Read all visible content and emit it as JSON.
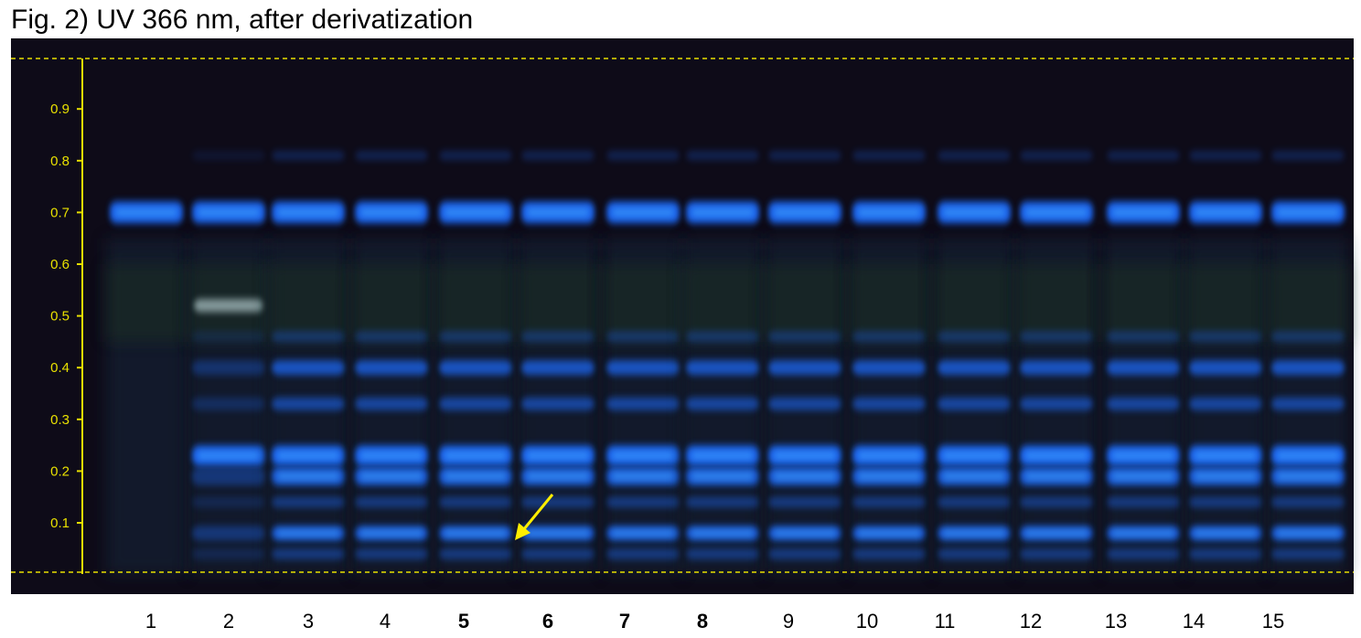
{
  "title": "Fig. 2) UV 366 nm, after derivatization",
  "axis": {
    "ticks": [
      0.9,
      0.8,
      0.7,
      0.6,
      0.5,
      0.4,
      0.3,
      0.2,
      0.1
    ]
  },
  "lanes": [
    {
      "label": "1",
      "bold": false
    },
    {
      "label": "2",
      "bold": false
    },
    {
      "label": "3",
      "bold": false
    },
    {
      "label": "4",
      "bold": false
    },
    {
      "label": "5",
      "bold": true
    },
    {
      "label": "6",
      "bold": true
    },
    {
      "label": "7",
      "bold": true
    },
    {
      "label": "8",
      "bold": true
    },
    {
      "label": "9",
      "bold": false
    },
    {
      "label": "10",
      "bold": false
    },
    {
      "label": "11",
      "bold": false
    },
    {
      "label": "12",
      "bold": false
    },
    {
      "label": "13",
      "bold": false
    },
    {
      "label": "14",
      "bold": false
    },
    {
      "label": "15",
      "bold": false
    }
  ]
}
